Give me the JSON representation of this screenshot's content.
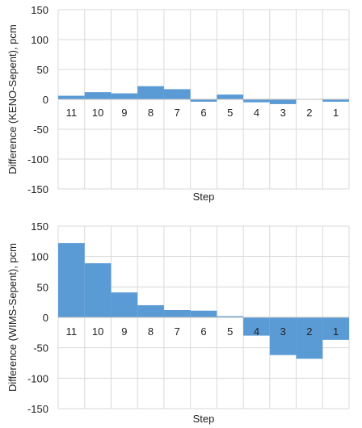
{
  "colors": {
    "bar": "#5b9bd5",
    "grid": "#d9d9d9",
    "axis": "#bfbfbf",
    "text": "#222222"
  },
  "chart_data": [
    {
      "type": "bar",
      "title": "",
      "xlabel": "Step",
      "ylabel": "Difference (KENO-Sepent), pcm",
      "ylim": [
        -150,
        150
      ],
      "yticks": [
        150,
        100,
        50,
        0,
        -50,
        -100,
        -150
      ],
      "categories": [
        "11",
        "10",
        "9",
        "8",
        "7",
        "6",
        "5",
        "4",
        "3",
        "2",
        "1"
      ],
      "values": [
        6,
        12,
        10,
        22,
        17,
        -4,
        8,
        -5,
        -8,
        0,
        -4
      ],
      "grid": true,
      "legend": "none"
    },
    {
      "type": "bar",
      "title": "",
      "xlabel": "Step",
      "ylabel": "Difference (WIMS-Sepent), pcm",
      "ylim": [
        -150,
        150
      ],
      "yticks": [
        150,
        100,
        50,
        0,
        -50,
        -100,
        -150
      ],
      "categories": [
        "11",
        "10",
        "9",
        "8",
        "7",
        "6",
        "5",
        "4",
        "3",
        "2",
        "1"
      ],
      "values": [
        122,
        89,
        41,
        20,
        12,
        11,
        2,
        -30,
        -62,
        -68,
        -37
      ],
      "grid": true,
      "legend": "none"
    }
  ]
}
